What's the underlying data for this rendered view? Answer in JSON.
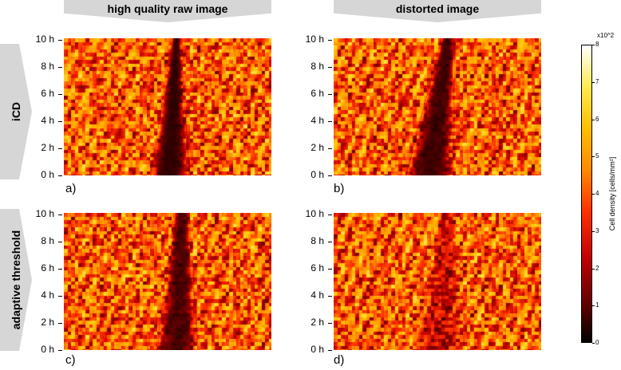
{
  "headers": {
    "columns": [
      "high quality raw image",
      "distorted image"
    ],
    "rows": [
      "iCD",
      "adaptive threshold"
    ]
  },
  "chart_data": {
    "type": "heatmap",
    "panels": [
      {
        "label": "a)",
        "row": "iCD",
        "column": "high quality raw image",
        "wound_bottom": [
          0.42,
          0.6
        ],
        "wound_top": [
          0.52,
          0.56
        ],
        "contrast": 1.0
      },
      {
        "label": "b)",
        "row": "iCD",
        "column": "distorted image",
        "wound_bottom": [
          0.35,
          0.57
        ],
        "wound_top": [
          0.52,
          0.58
        ],
        "contrast": 0.95
      },
      {
        "label": "c)",
        "row": "adaptive threshold",
        "column": "high quality raw image",
        "wound_bottom": [
          0.45,
          0.64
        ],
        "wound_top": [
          0.53,
          0.6
        ],
        "contrast": 0.9
      },
      {
        "label": "d)",
        "row": "adaptive threshold",
        "column": "distorted image",
        "wound_bottom": [
          0.38,
          0.64
        ],
        "wound_top": [
          0.52,
          0.58
        ],
        "contrast": 0.45
      }
    ],
    "y_ticks": [
      "0 h",
      "2 h",
      "4 h",
      "6 h",
      "8 h",
      "10 h"
    ],
    "ylim": [
      0,
      10
    ],
    "colorbar": {
      "label": "Cell density [cells/mm²]",
      "exponent": "x10^2",
      "range": [
        0,
        8
      ],
      "ticks": [
        "0",
        "1",
        "2",
        "3",
        "4",
        "5",
        "6",
        "7",
        "8"
      ],
      "colormap": "hot",
      "colors": [
        "#000000",
        "#5a0000",
        "#c00000",
        "#ff3000",
        "#ff8a00",
        "#ffc000",
        "#ffeb50",
        "#ffffff"
      ]
    },
    "grid": false
  }
}
